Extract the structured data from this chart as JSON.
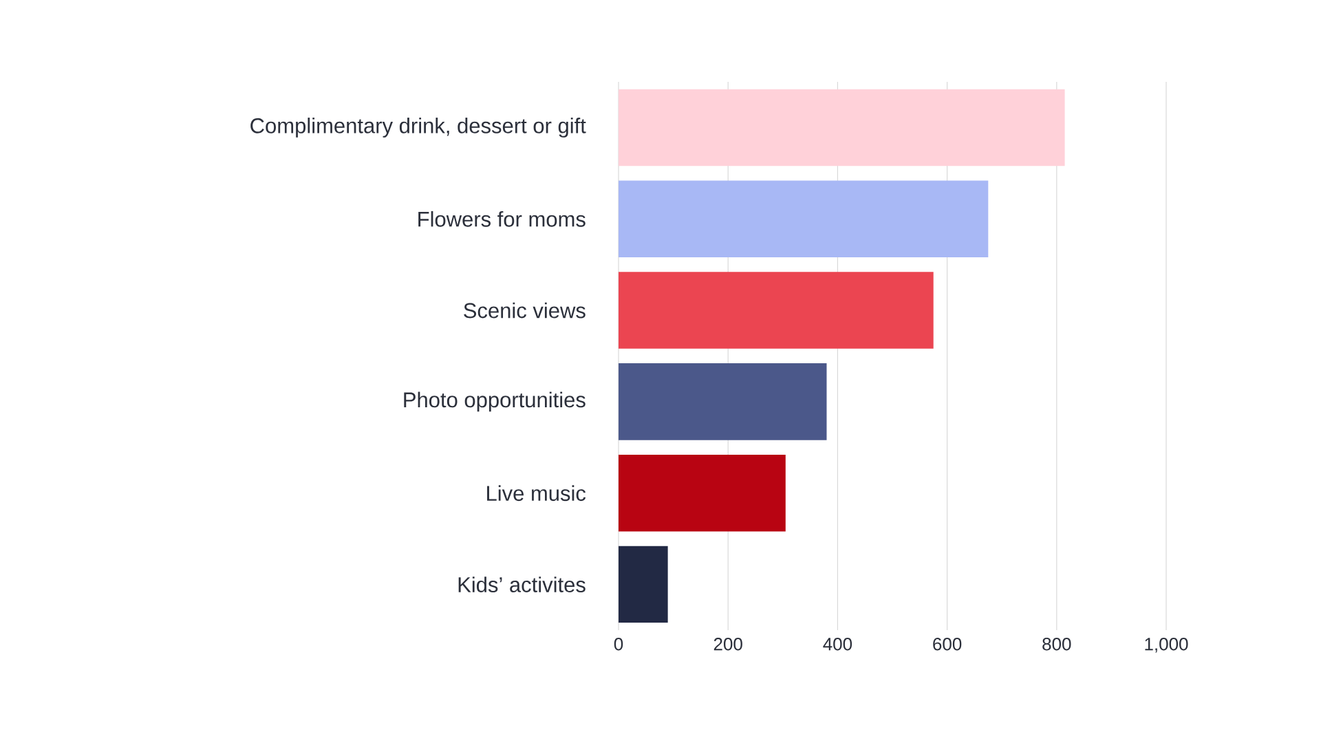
{
  "chart_data": {
    "type": "bar",
    "orientation": "horizontal",
    "categories": [
      "Complimentary drink, dessert or gift",
      "Flowers for moms",
      "Scenic views",
      "Photo opportunities",
      "Live music",
      "Kids’ activites"
    ],
    "values": [
      815,
      675,
      575,
      380,
      305,
      90
    ],
    "colors": [
      "#ffd1d9",
      "#a8b8f5",
      "#eb4551",
      "#4b588a",
      "#b80412",
      "#222944"
    ],
    "xlim": [
      0,
      1000
    ],
    "xticks": [
      0,
      200,
      400,
      600,
      800,
      {
        "value": 1000,
        "label": "1,000"
      }
    ],
    "grid": "x"
  }
}
